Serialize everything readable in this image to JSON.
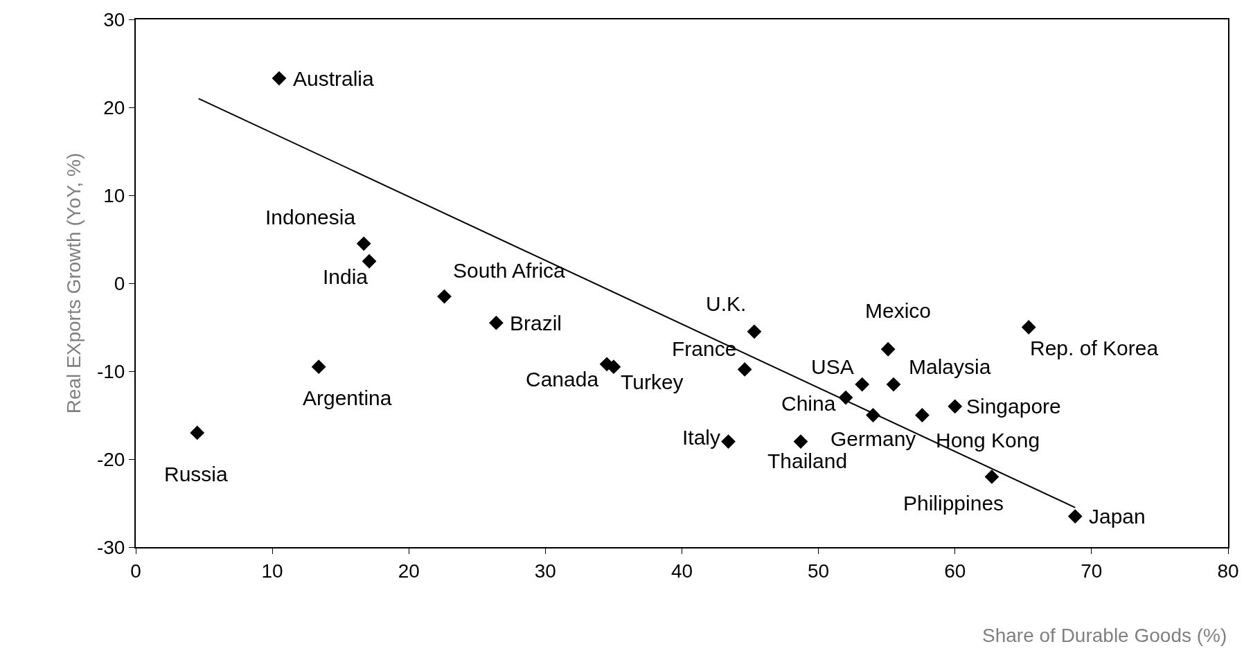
{
  "chart_data": {
    "type": "scatter",
    "xlabel": "Share of Durable Goods (%)",
    "ylabel": "Real EXports Growth (YoY, %)",
    "xlim": [
      0,
      80
    ],
    "ylim": [
      -30,
      30
    ],
    "xticks": [
      0,
      10,
      20,
      30,
      40,
      50,
      60,
      70,
      80
    ],
    "yticks": [
      -30,
      -20,
      -10,
      0,
      10,
      20,
      30
    ],
    "legend": false,
    "marker": "diamond",
    "series": [
      {
        "color": "#000000",
        "x": [
          10.5,
          16.7,
          17.1,
          22.6,
          26.4,
          13.4,
          4.5,
          34.5,
          35.0,
          44.6,
          45.3,
          43.4,
          48.7,
          52.0,
          53.2,
          54.0,
          55.1,
          55.5,
          57.6,
          60.0,
          65.4,
          62.7,
          68.8
        ],
        "values": [
          23.3,
          4.5,
          2.5,
          -1.5,
          -4.5,
          -9.5,
          -17,
          -9.2,
          -9.5,
          -9.8,
          -5.5,
          -18,
          -18,
          -13,
          -11.5,
          -15,
          -7.5,
          -11.5,
          -15,
          -14,
          -5,
          -22,
          -26.5
        ]
      },
      {
        "type": "line",
        "color": "#000000",
        "marker": "none",
        "x": [
          4.6,
          68.8
        ],
        "values": [
          21,
          -25.5
        ]
      }
    ],
    "annotations": [
      {
        "text": "Australia",
        "x": 10.5,
        "y": 23.3
      },
      {
        "text": "Indonesia",
        "x": 16.7,
        "y": 4.5
      },
      {
        "text": "India",
        "x": 17.1,
        "y": 2.5
      },
      {
        "text": "South Africa",
        "x": 22.6,
        "y": -1.5
      },
      {
        "text": "Brazil",
        "x": 26.4,
        "y": -4.5
      },
      {
        "text": "Argentina",
        "x": 13.4,
        "y": -9.5
      },
      {
        "text": "Russia",
        "x": 4.5,
        "y": -17
      },
      {
        "text": "Canada",
        "x": 34.5,
        "y": -9.2
      },
      {
        "text": "Turkey",
        "x": 35.0,
        "y": -9.5
      },
      {
        "text": "France",
        "x": 44.6,
        "y": -9.8
      },
      {
        "text": "U.K.",
        "x": 45.3,
        "y": -5.5
      },
      {
        "text": "Italy",
        "x": 43.4,
        "y": -18
      },
      {
        "text": "Thailand",
        "x": 48.7,
        "y": -18
      },
      {
        "text": "China",
        "x": 52.0,
        "y": -13
      },
      {
        "text": "USA",
        "x": 53.2,
        "y": -11.5
      },
      {
        "text": "Germany",
        "x": 54.0,
        "y": -15
      },
      {
        "text": "Mexico",
        "x": 55.1,
        "y": -7.5
      },
      {
        "text": "Malaysia",
        "x": 55.5,
        "y": -11.5
      },
      {
        "text": "Hong Kong",
        "x": 57.6,
        "y": -15
      },
      {
        "text": "Singapore",
        "x": 60.0,
        "y": -14
      },
      {
        "text": "Rep. of Korea",
        "x": 65.4,
        "y": -5
      },
      {
        "text": "Philippines",
        "x": 62.7,
        "y": -22
      },
      {
        "text": "Japan",
        "x": 68.8,
        "y": -26.5
      }
    ]
  }
}
